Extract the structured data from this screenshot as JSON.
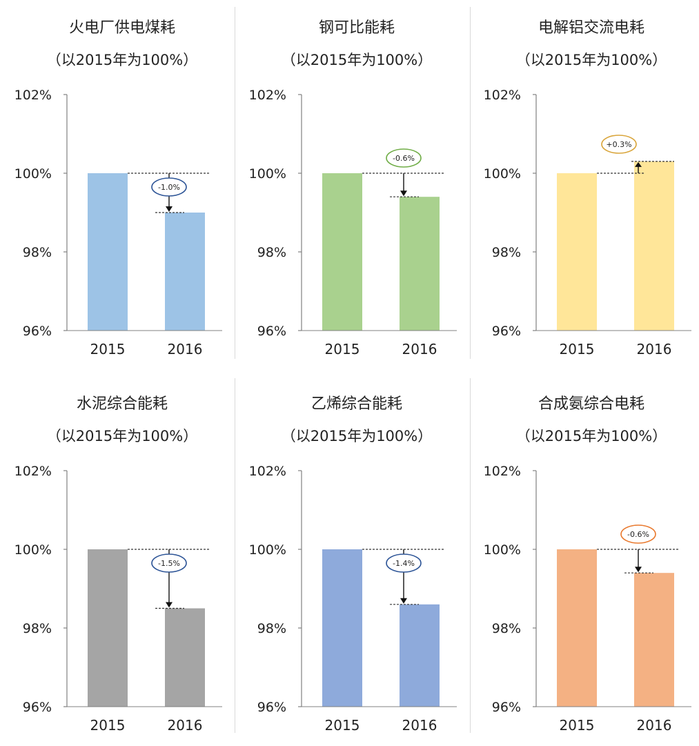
{
  "chart_data": [
    {
      "type": "bar",
      "title": "火电厂供电煤耗",
      "subtitle": "（以2015年为100%）",
      "categories": [
        "2015",
        "2016"
      ],
      "values": [
        100.0,
        99.0
      ],
      "ylim": [
        96,
        102
      ],
      "yticks": [
        "102%",
        "100%",
        "98%",
        "96%"
      ],
      "annotation": "-1.0%",
      "direction": "down",
      "colors": {
        "bar": "#9dc3e6",
        "ellipse": "#2e5597"
      }
    },
    {
      "type": "bar",
      "title": "钢可比能耗",
      "subtitle": "（以2015年为100%）",
      "categories": [
        "2015",
        "2016"
      ],
      "values": [
        100.0,
        99.4
      ],
      "ylim": [
        96,
        102
      ],
      "yticks": [
        "102%",
        "100%",
        "98%",
        "96%"
      ],
      "annotation": "-0.6%",
      "direction": "down",
      "colors": {
        "bar": "#a9d18e",
        "ellipse": "#70ad47"
      }
    },
    {
      "type": "bar",
      "title": "电解铝交流电耗",
      "subtitle": "（以2015年为100%）",
      "categories": [
        "2015",
        "2016"
      ],
      "values": [
        100.0,
        100.3
      ],
      "ylim": [
        96,
        102
      ],
      "yticks": [
        "102%",
        "100%",
        "98%",
        "96%"
      ],
      "annotation": "+0.3%",
      "direction": "up",
      "colors": {
        "bar": "#ffe699",
        "ellipse": "#d9a53b"
      }
    },
    {
      "type": "bar",
      "title": "水泥综合能耗",
      "subtitle": "（以2015年为100%）",
      "categories": [
        "2015",
        "2016"
      ],
      "values": [
        100.0,
        98.5
      ],
      "ylim": [
        96,
        102
      ],
      "yticks": [
        "102%",
        "100%",
        "98%",
        "96%"
      ],
      "annotation": "-1.5%",
      "direction": "down",
      "colors": {
        "bar": "#a5a5a5",
        "ellipse": "#2e5597"
      }
    },
    {
      "type": "bar",
      "title": "乙烯综合能耗",
      "subtitle": "（以2015年为100%）",
      "categories": [
        "2015",
        "2016"
      ],
      "values": [
        100.0,
        98.6
      ],
      "ylim": [
        96,
        102
      ],
      "yticks": [
        "102%",
        "100%",
        "98%",
        "96%"
      ],
      "annotation": "-1.4%",
      "direction": "down",
      "colors": {
        "bar": "#8eaadb",
        "ellipse": "#2e5597"
      }
    },
    {
      "type": "bar",
      "title": "合成氨综合电耗",
      "subtitle": "（以2015年为100%）",
      "categories": [
        "2015",
        "2016"
      ],
      "values": [
        100.0,
        99.4
      ],
      "ylim": [
        96,
        102
      ],
      "yticks": [
        "102%",
        "100%",
        "98%",
        "96%"
      ],
      "annotation": "-0.6%",
      "direction": "down",
      "colors": {
        "bar": "#f4b183",
        "ellipse": "#e97a2f"
      }
    }
  ]
}
